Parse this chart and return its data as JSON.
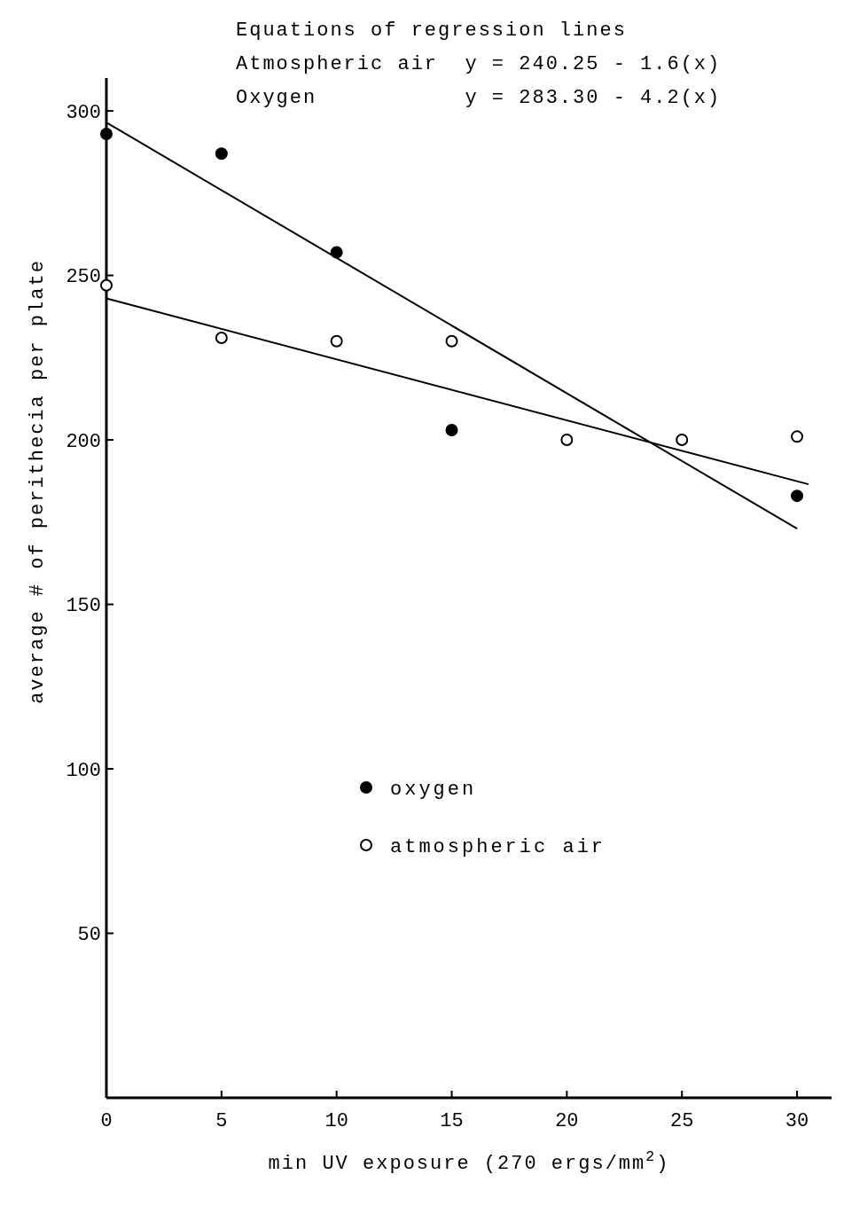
{
  "chart_data": {
    "type": "scatter",
    "xlabel": "min UV exposure (270 ergs/mm$^{2}$)",
    "ylabel": "average # of perithecia per plate",
    "annotations": [
      "Equations of regression lines",
      "Atmospheric air  y = 240.25 - 1.6(x)",
      "Oxygen           y = 283.30 - 4.2(x)"
    ],
    "series": [
      {
        "name": "oxygen",
        "color": "#000000",
        "marker": "circle",
        "x": [
          0,
          5,
          10,
          15,
          30
        ],
        "values": [
          293,
          287,
          257,
          203,
          183
        ]
      },
      {
        "name": "atmospheric air",
        "color": "#000000",
        "marker": "circle",
        "x": [
          0,
          5,
          10,
          15,
          20,
          25,
          30
        ],
        "values": [
          247,
          231,
          230,
          230,
          200,
          200,
          201
        ]
      },
      {
        "type": "line",
        "color": "#000000",
        "marker": "none",
        "x": [
          0,
          30
        ],
        "values": [
          296.5,
          173
        ]
      },
      {
        "type": "line",
        "color": "#000000",
        "marker": "none",
        "x": [
          0,
          30.5
        ],
        "values": [
          243,
          186.5
        ]
      }
    ],
    "xlim": [
      0,
      31.5
    ],
    "ylim": [
      0,
      310
    ],
    "xticks": [
      0,
      5,
      10,
      15,
      20,
      25,
      30
    ],
    "yticks": [
      50,
      100,
      150,
      200,
      250,
      300
    ],
    "grid": false,
    "legend": "center",
    "line_style": "solid"
  }
}
